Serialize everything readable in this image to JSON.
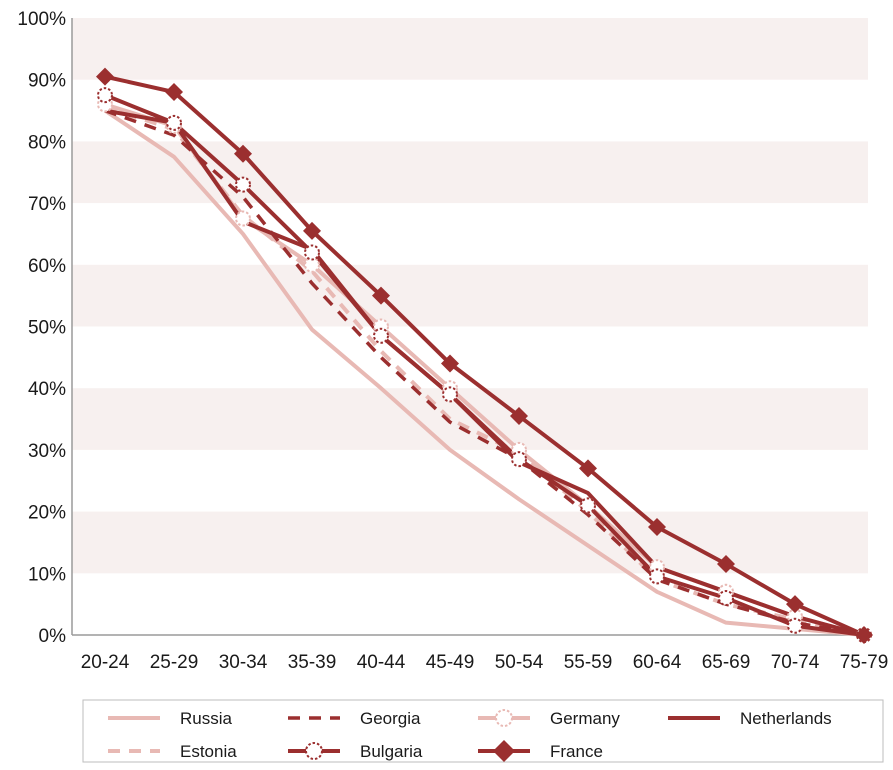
{
  "chart_data": {
    "type": "line",
    "categories": [
      "20-24",
      "25-29",
      "30-34",
      "35-39",
      "40-44",
      "45-49",
      "50-54",
      "55-59",
      "60-64",
      "65-69",
      "70-74",
      "75-79"
    ],
    "y_ticks": [
      "0%",
      "10%",
      "20%",
      "30%",
      "40%",
      "50%",
      "60%",
      "70%",
      "80%",
      "90%",
      "100%"
    ],
    "ylim": [
      0,
      100
    ],
    "y_unit": "%",
    "grid": "alternating horizontal bands",
    "legend_position": "bottom",
    "colors": {
      "light": "#e8b9b4",
      "dark": "#9b2f2f",
      "band": "#f7f0ef"
    },
    "series": [
      {
        "name": "Russia",
        "style": "solid-light",
        "values": [
          85,
          77.5,
          65,
          49.5,
          40,
          30,
          22,
          14.5,
          7,
          2,
          1,
          0
        ]
      },
      {
        "name": "Georgia",
        "style": "dashed-dark",
        "values": [
          85,
          81,
          71,
          57,
          45,
          34.5,
          28.5,
          19.5,
          9,
          5,
          2,
          0
        ]
      },
      {
        "name": "Germany",
        "style": "light-open-circle",
        "values": [
          86,
          82.5,
          67.5,
          60,
          50,
          40,
          30,
          21,
          11,
          7,
          3,
          0
        ]
      },
      {
        "name": "Netherlands",
        "style": "solid-dark",
        "values": [
          85,
          83,
          67,
          62.5,
          48.5,
          39,
          28,
          23,
          11,
          7,
          3,
          0
        ]
      },
      {
        "name": "Estonia",
        "style": "dashed-light",
        "values": [
          85.5,
          82,
          68,
          59,
          46,
          35,
          29.5,
          20,
          9,
          5,
          2.5,
          0
        ]
      },
      {
        "name": "Bulgaria",
        "style": "dark-open-circle",
        "values": [
          87.5,
          83,
          73,
          62,
          48.5,
          39,
          28.5,
          21,
          9.5,
          6,
          1.5,
          0
        ]
      },
      {
        "name": "France",
        "style": "dark-diamond",
        "values": [
          90.5,
          88,
          78,
          65.5,
          55,
          44,
          35.5,
          27,
          17.5,
          11.5,
          5,
          0
        ]
      }
    ]
  }
}
